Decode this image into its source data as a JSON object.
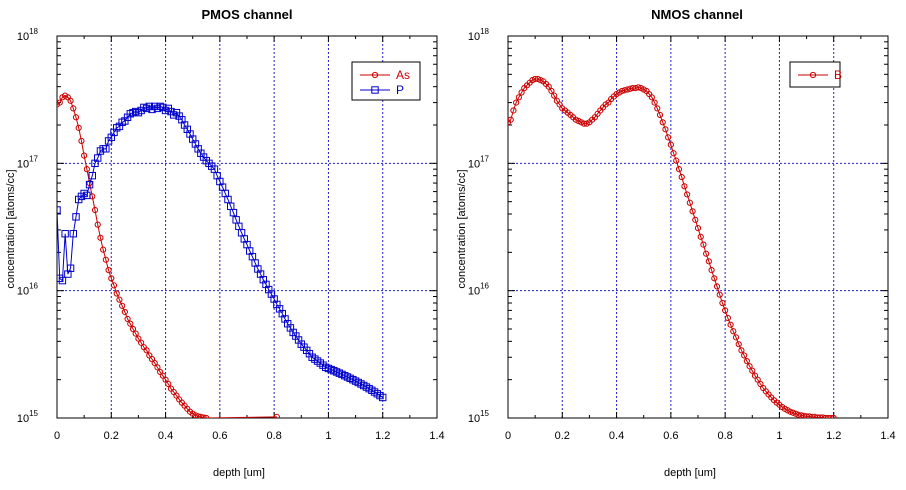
{
  "chart_data": [
    {
      "type": "line",
      "title": "PMOS channel",
      "xlabel": "depth [um]",
      "ylabel": "concentration [atoms/cc]",
      "xlim": [
        0,
        1.4
      ],
      "ylim": [
        1000000000000000.0,
        1e+18
      ],
      "yscale": "log",
      "grid": true,
      "legend": "top-right",
      "x_ticks": [
        "0",
        "0.2",
        "0.4",
        "0.6",
        "0.8",
        "1",
        "1.2",
        "1.4"
      ],
      "y_ticks": [
        {
          "base": "10",
          "exp": "15"
        },
        {
          "base": "10",
          "exp": "16"
        },
        {
          "base": "10",
          "exp": "17"
        },
        {
          "base": "10",
          "exp": "18"
        }
      ],
      "series": [
        {
          "name": "As",
          "color": "#cc0000",
          "marker": "circle",
          "x": [
            0.0,
            0.01,
            0.02,
            0.03,
            0.04,
            0.05,
            0.06,
            0.07,
            0.08,
            0.09,
            0.1,
            0.11,
            0.12,
            0.13,
            0.14,
            0.15,
            0.16,
            0.17,
            0.18,
            0.19,
            0.2,
            0.21,
            0.22,
            0.23,
            0.24,
            0.25,
            0.26,
            0.27,
            0.28,
            0.29,
            0.3,
            0.31,
            0.32,
            0.33,
            0.34,
            0.35,
            0.36,
            0.37,
            0.38,
            0.39,
            0.4,
            0.41,
            0.42,
            0.43,
            0.44,
            0.45,
            0.46,
            0.47,
            0.48,
            0.49,
            0.5,
            0.51,
            0.52,
            0.53,
            0.54,
            0.55,
            0.81
          ],
          "y": [
            2.9e+17,
            3e+17,
            3.3e+17,
            3.4e+17,
            3.3e+17,
            3.1e+17,
            2.7e+17,
            2.3e+17,
            1.9e+17,
            1.5e+17,
            1.15e+17,
            9e+16,
            7e+16,
            5.5e+16,
            4.3e+16,
            3.3e+16,
            2.6e+16,
            2.1e+16,
            1.75e+16,
            1.45e+16,
            1.25e+16,
            1.1e+16,
            9500000000000000.0,
            8500000000000000.0,
            7600000000000000.0,
            6800000000000000.0,
            6000000000000000.0,
            5500000000000000.0,
            5000000000000000.0,
            4600000000000000.0,
            4200000000000000.0,
            3900000000000000.0,
            3600000000000000.0,
            3400000000000000.0,
            3100000000000000.0,
            2900000000000000.0,
            2700000000000000.0,
            2500000000000000.0,
            2300000000000000.0,
            2150000000000000.0,
            2000000000000000.0,
            1850000000000000.0,
            1700000000000000.0,
            1600000000000000.0,
            1500000000000000.0,
            1400000000000000.0,
            1320000000000000.0,
            1250000000000000.0,
            1180000000000000.0,
            1120000000000000.0,
            1080000000000000.0,
            1050000000000000.0,
            1030000000000000.0,
            1020000000000000.0,
            1010000000000000.0,
            1000000000000000.0,
            1020000000000000.0
          ]
        },
        {
          "name": "P",
          "color": "#0000cc",
          "marker": "square",
          "x": [
            0.0,
            0.01,
            0.02,
            0.03,
            0.04,
            0.05,
            0.06,
            0.07,
            0.08,
            0.09,
            0.1,
            0.11,
            0.12,
            0.13,
            0.14,
            0.15,
            0.16,
            0.17,
            0.18,
            0.19,
            0.2,
            0.21,
            0.22,
            0.23,
            0.24,
            0.25,
            0.26,
            0.27,
            0.28,
            0.29,
            0.3,
            0.31,
            0.32,
            0.33,
            0.34,
            0.35,
            0.36,
            0.37,
            0.38,
            0.39,
            0.4,
            0.41,
            0.42,
            0.43,
            0.44,
            0.45,
            0.46,
            0.47,
            0.48,
            0.49,
            0.5,
            0.51,
            0.52,
            0.53,
            0.54,
            0.55,
            0.56,
            0.57,
            0.58,
            0.59,
            0.6,
            0.61,
            0.62,
            0.63,
            0.64,
            0.65,
            0.66,
            0.67,
            0.68,
            0.69,
            0.7,
            0.71,
            0.72,
            0.73,
            0.74,
            0.75,
            0.76,
            0.77,
            0.78,
            0.79,
            0.8,
            0.81,
            0.82,
            0.83,
            0.84,
            0.85,
            0.86,
            0.87,
            0.88,
            0.89,
            0.9,
            0.91,
            0.92,
            0.93,
            0.94,
            0.95,
            0.96,
            0.97,
            0.98,
            0.99,
            1.0,
            1.01,
            1.02,
            1.03,
            1.04,
            1.05,
            1.06,
            1.07,
            1.08,
            1.09,
            1.1,
            1.11,
            1.12,
            1.13,
            1.14,
            1.15,
            1.16,
            1.17,
            1.18,
            1.19,
            1.2
          ],
          "y": [
            4.3e+16,
            1.25e+16,
            1.2e+16,
            2.8e+16,
            1.35e+16,
            1.5e+16,
            2.8e+16,
            3.8e+16,
            5.2e+16,
            5.5e+16,
            5.8e+16,
            5.6e+16,
            6.8e+16,
            8e+16,
            1e+17,
            1.1e+17,
            1.25e+17,
            1.3e+17,
            1.3e+17,
            1.5e+17,
            1.6e+17,
            1.75e+17,
            1.9e+17,
            1.95e+17,
            2.1e+17,
            2.15e+17,
            2.3e+17,
            2.45e+17,
            2.5e+17,
            2.55e+17,
            2.5e+17,
            2.6e+17,
            2.75e+17,
            2.7e+17,
            2.8e+17,
            2.65e+17,
            2.8e+17,
            2.7e+17,
            2.8e+17,
            2.75e+17,
            2.6e+17,
            2.7e+17,
            2.55e+17,
            2.4e+17,
            2.5e+17,
            2.35e+17,
            2.2e+17,
            2e+17,
            1.85e+17,
            1.7e+17,
            1.55e+17,
            1.42e+17,
            1.3e+17,
            1.2e+17,
            1.12e+17,
            1.05e+17,
            1e+17,
            9.5e+16,
            9e+16,
            8e+16,
            7.2e+16,
            6.5e+16,
            5.8e+16,
            5.2e+16,
            4.6e+16,
            4.1e+16,
            3.6e+16,
            3.2e+16,
            2.85e+16,
            2.55e+16,
            2.3e+16,
            2.05e+16,
            1.85e+16,
            1.65e+16,
            1.48e+16,
            1.35e+16,
            1.22e+16,
            1.12e+16,
            1.02e+16,
            9400000000000000.0,
            8600000000000000.0,
            7800000000000000.0,
            7200000000000000.0,
            6600000000000000.0,
            6000000000000000.0,
            5500000000000000.0,
            5100000000000000.0,
            4700000000000000.0,
            4400000000000000.0,
            4100000000000000.0,
            3800000000000000.0,
            3600000000000000.0,
            3400000000000000.0,
            3200000000000000.0,
            3000000000000000.0,
            2900000000000000.0,
            2800000000000000.0,
            2700000000000000.0,
            2600000000000000.0,
            2500000000000000.0,
            2450000000000000.0,
            2400000000000000.0,
            2350000000000000.0,
            2300000000000000.0,
            2250000000000000.0,
            2200000000000000.0,
            2150000000000000.0,
            2100000000000000.0,
            2050000000000000.0,
            2000000000000000.0,
            1950000000000000.0,
            1900000000000000.0,
            1850000000000000.0,
            1800000000000000.0,
            1750000000000000.0,
            1700000000000000.0,
            1650000000000000.0,
            1600000000000000.0,
            1550000000000000.0,
            1500000000000000.0,
            1450000000000000.0
          ]
        }
      ]
    },
    {
      "type": "line",
      "title": "NMOS channel",
      "xlabel": "depth [um]",
      "ylabel": "concentration [atoms/cc]",
      "xlim": [
        0,
        1.4
      ],
      "ylim": [
        1000000000000000.0,
        1e+18
      ],
      "yscale": "log",
      "grid": true,
      "legend": "top-right",
      "x_ticks": [
        "0",
        "0.2",
        "0.4",
        "0.6",
        "0.8",
        "1",
        "1.2",
        "1.4"
      ],
      "y_ticks": [
        {
          "base": "10",
          "exp": "15"
        },
        {
          "base": "10",
          "exp": "16"
        },
        {
          "base": "10",
          "exp": "17"
        },
        {
          "base": "10",
          "exp": "18"
        }
      ],
      "series": [
        {
          "name": "B",
          "color": "#cc0000",
          "marker": "circle",
          "x": [
            0.0,
            0.01,
            0.02,
            0.03,
            0.04,
            0.05,
            0.06,
            0.07,
            0.08,
            0.09,
            0.1,
            0.11,
            0.12,
            0.13,
            0.14,
            0.15,
            0.16,
            0.17,
            0.18,
            0.19,
            0.2,
            0.21,
            0.22,
            0.23,
            0.24,
            0.25,
            0.26,
            0.27,
            0.28,
            0.29,
            0.3,
            0.31,
            0.32,
            0.33,
            0.34,
            0.35,
            0.36,
            0.37,
            0.38,
            0.39,
            0.4,
            0.41,
            0.42,
            0.43,
            0.44,
            0.45,
            0.46,
            0.47,
            0.48,
            0.49,
            0.5,
            0.51,
            0.52,
            0.53,
            0.54,
            0.55,
            0.56,
            0.57,
            0.58,
            0.59,
            0.6,
            0.61,
            0.62,
            0.63,
            0.64,
            0.65,
            0.66,
            0.67,
            0.68,
            0.69,
            0.7,
            0.71,
            0.72,
            0.73,
            0.74,
            0.75,
            0.76,
            0.77,
            0.78,
            0.79,
            0.8,
            0.81,
            0.82,
            0.83,
            0.84,
            0.85,
            0.86,
            0.87,
            0.88,
            0.89,
            0.9,
            0.91,
            0.92,
            0.93,
            0.94,
            0.95,
            0.96,
            0.97,
            0.98,
            0.99,
            1.0,
            1.01,
            1.02,
            1.03,
            1.04,
            1.05,
            1.06,
            1.07,
            1.08,
            1.09,
            1.1,
            1.11,
            1.12,
            1.13,
            1.14,
            1.15,
            1.16,
            1.17,
            1.18,
            1.19,
            1.2
          ],
          "y": [
            2.1e+17,
            2.2e+17,
            2.6e+17,
            3e+17,
            3.3e+17,
            3.6e+17,
            3.9e+17,
            4.1e+17,
            4.3e+17,
            4.5e+17,
            4.6e+17,
            4.6e+17,
            4.5e+17,
            4.4e+17,
            4.2e+17,
            4e+17,
            3.7e+17,
            3.4e+17,
            3.1e+17,
            2.9e+17,
            2.7e+17,
            2.6e+17,
            2.5e+17,
            2.4e+17,
            2.3e+17,
            2.2e+17,
            2.15e+17,
            2.1e+17,
            2.05e+17,
            2.05e+17,
            2.1e+17,
            2.2e+17,
            2.3e+17,
            2.45e+17,
            2.6e+17,
            2.75e+17,
            2.9e+17,
            3e+17,
            3.2e+17,
            3.35e+17,
            3.5e+17,
            3.6e+17,
            3.7e+17,
            3.75e+17,
            3.8e+17,
            3.85e+17,
            3.9e+17,
            3.9e+17,
            3.95e+17,
            3.9e+17,
            3.8e+17,
            3.7e+17,
            3.5e+17,
            3.3e+17,
            3e+17,
            2.7e+17,
            2.4e+17,
            2.1e+17,
            1.85e+17,
            1.6e+17,
            1.4e+17,
            1.2e+17,
            1.05e+17,
            9e+16,
            7.8e+16,
            6.6e+16,
            5.7e+16,
            4.9e+16,
            4.2e+16,
            3.6e+16,
            3.1e+16,
            2.65e+16,
            2.3e+16,
            1.95e+16,
            1.7e+16,
            1.45e+16,
            1.25e+16,
            1.08e+16,
            9300000000000000.0,
            8000000000000000.0,
            7000000000000000.0,
            6100000000000000.0,
            5400000000000000.0,
            4800000000000000.0,
            4300000000000000.0,
            3800000000000000.0,
            3400000000000000.0,
            3100000000000000.0,
            2800000000000000.0,
            2550000000000000.0,
            2350000000000000.0,
            2150000000000000.0,
            2000000000000000.0,
            1850000000000000.0,
            1720000000000000.0,
            1620000000000000.0,
            1530000000000000.0,
            1450000000000000.0,
            1380000000000000.0,
            1320000000000000.0,
            1270000000000000.0,
            1220000000000000.0,
            1180000000000000.0,
            1150000000000000.0,
            1120000000000000.0,
            1100000000000000.0,
            1080000000000000.0,
            1060000000000000.0,
            1050000000000000.0,
            1040000000000000.0,
            1030000000000000.0,
            1030000000000000.0,
            1020000000000000.0,
            1020000000000000.0,
            1010000000000000.0,
            1010000000000000.0,
            1010000000000000.0,
            1000000000000000.0,
            1000000000000000.0,
            1000000000000000.0,
            1000000000000000.0
          ]
        }
      ]
    }
  ]
}
